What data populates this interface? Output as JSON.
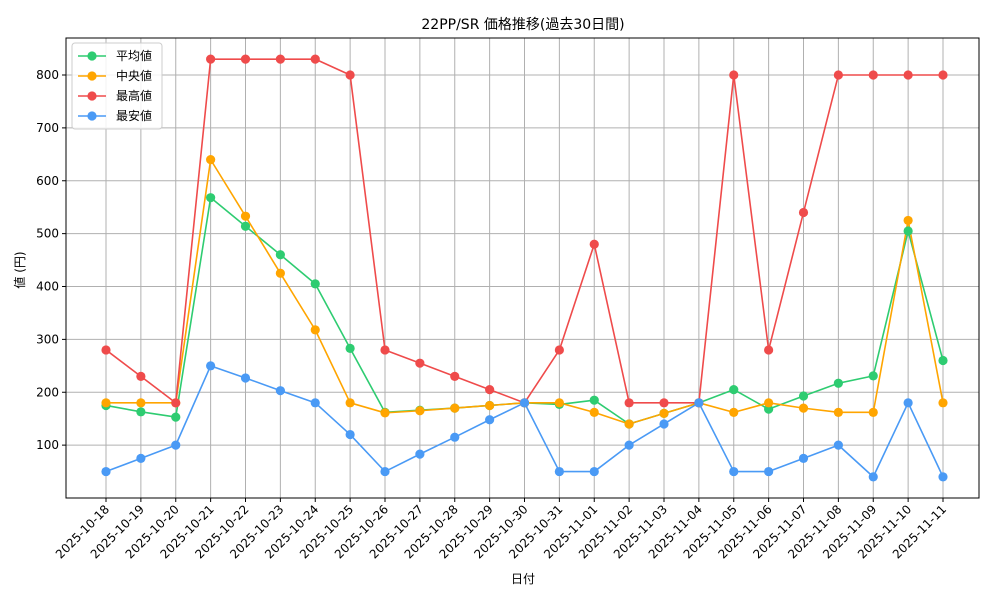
{
  "chart_data": {
    "type": "line",
    "title": "22PP/SR 価格推移(過去30日間)",
    "xlabel": "日付",
    "ylabel": "値 (円)",
    "ylim": [
      0,
      870
    ],
    "yticks": [
      100,
      200,
      300,
      400,
      500,
      600,
      700,
      800
    ],
    "grid": true,
    "legend_position": "top-left",
    "categories": [
      "2025-10-18",
      "2025-10-19",
      "2025-10-20",
      "2025-10-21",
      "2025-10-22",
      "2025-10-23",
      "2025-10-24",
      "2025-10-25",
      "2025-10-26",
      "2025-10-27",
      "2025-10-28",
      "2025-10-29",
      "2025-10-30",
      "2025-10-31",
      "2025-11-01",
      "2025-11-02",
      "2025-11-03",
      "2025-11-04",
      "2025-11-05",
      "2025-11-06",
      "2025-11-07",
      "2025-11-08",
      "2025-11-09",
      "2025-11-10",
      "2025-11-11"
    ],
    "series": [
      {
        "name": "平均値",
        "color": "#2ecc71",
        "values": [
          175,
          163,
          153,
          568,
          514,
          460,
          405,
          283,
          162,
          166,
          170,
          175,
          180,
          177,
          185,
          140,
          160,
          180,
          205,
          168,
          193,
          217,
          231,
          505,
          260
        ]
      },
      {
        "name": "中央値",
        "color": "#ffa500",
        "values": [
          180,
          180,
          180,
          640,
          533,
          425,
          318,
          180,
          161,
          165,
          170,
          175,
          180,
          180,
          162,
          140,
          160,
          180,
          162,
          180,
          170,
          162,
          162,
          525,
          180
        ]
      },
      {
        "name": "最高値",
        "color": "#ef4b4b",
        "values": [
          280,
          230,
          180,
          830,
          830,
          830,
          830,
          800,
          280,
          255,
          230,
          205,
          180,
          280,
          480,
          180,
          180,
          180,
          800,
          280,
          540,
          800,
          800,
          800,
          800
        ]
      },
      {
        "name": "最安値",
        "color": "#4a9af5",
        "values": [
          50,
          75,
          100,
          250,
          227,
          203,
          180,
          120,
          50,
          83,
          115,
          148,
          180,
          50,
          50,
          100,
          140,
          180,
          50,
          50,
          75,
          100,
          40,
          180,
          40
        ]
      }
    ]
  }
}
